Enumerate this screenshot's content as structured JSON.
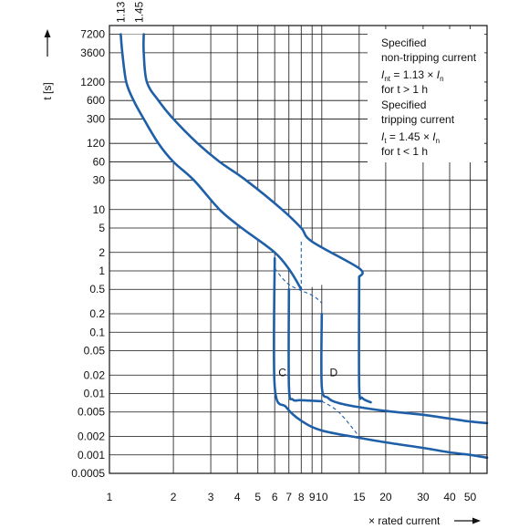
{
  "chart_data": {
    "type": "line",
    "title": "",
    "xlabel": "× rated current",
    "ylabel": "t [s]",
    "xscale": "log",
    "yscale": "log",
    "xlim": [
      1,
      60
    ],
    "ylim": [
      0.0005,
      10000
    ],
    "x_ticks": [
      1,
      2,
      3,
      4,
      5,
      6,
      7,
      8,
      9,
      10,
      15,
      20,
      30,
      40,
      50
    ],
    "x_tick_labels": [
      "1",
      "2",
      "3",
      "4",
      "5",
      "6",
      "7",
      "8",
      "9",
      "10",
      "15",
      "20",
      "30",
      "40",
      "50"
    ],
    "y_ticks": [
      7200,
      3600,
      1200,
      600,
      300,
      120,
      60,
      30,
      10,
      5,
      2,
      1,
      0.5,
      0.2,
      0.1,
      0.05,
      0.02,
      0.01,
      0.005,
      0.002,
      0.001,
      0.0005
    ],
    "y_tick_labels": [
      "7200",
      "3600",
      "1200",
      "600",
      "300",
      "120",
      "60",
      "30",
      "10",
      "5",
      "2",
      "1",
      "0.5",
      "0.2",
      "0.1",
      "0.05",
      "0.02",
      "0.01",
      "0.005",
      "0.002",
      "0.001",
      "0.0005"
    ],
    "grid": true,
    "curve_top_labels": [
      "1.13",
      "1.45"
    ],
    "series": [
      {
        "name": "",
        "values": [
          [
            1.13,
            7200
          ],
          [
            1.15,
            3600
          ],
          [
            1.2,
            1200
          ],
          [
            1.3,
            600
          ],
          [
            1.45,
            300
          ],
          [
            1.7,
            120
          ],
          [
            2,
            60
          ],
          [
            2.5,
            30
          ],
          [
            3.3,
            10
          ],
          [
            4.2,
            5
          ],
          [
            6,
            2
          ],
          [
            7.1,
            1
          ],
          [
            8,
            0.5
          ]
        ]
      },
      {
        "name": "",
        "values": [
          [
            1.45,
            7200
          ],
          [
            1.45,
            3600
          ],
          [
            1.5,
            1200
          ],
          [
            1.7,
            600
          ],
          [
            2,
            300
          ],
          [
            2.6,
            120
          ],
          [
            3.3,
            60
          ],
          [
            4.4,
            30
          ],
          [
            6.5,
            10
          ],
          [
            8,
            5
          ],
          [
            9,
            3
          ],
          [
            15,
            1.1
          ],
          [
            15,
            0.8
          ]
        ]
      },
      {
        "name": "C",
        "values": [
          [
            6,
            1.6
          ],
          [
            6,
            0.013
          ],
          [
            6.8,
            0.006
          ],
          [
            8,
            0.0036
          ],
          [
            10,
            0.0025
          ],
          [
            15,
            0.0019
          ],
          [
            20,
            0.0016
          ],
          [
            30,
            0.0013
          ],
          [
            40,
            0.0011
          ],
          [
            50,
            0.001
          ],
          [
            60,
            0.0009
          ]
        ]
      },
      {
        "name": "",
        "values": [
          [
            7,
            0.5
          ],
          [
            7,
            0.013
          ],
          [
            7.3,
            0.008
          ],
          [
            8,
            0.0078
          ],
          [
            10,
            0.0075
          ]
        ]
      },
      {
        "name": "D",
        "values": [
          [
            10,
            0.2
          ],
          [
            10,
            0.013
          ],
          [
            10.7,
            0.0085
          ],
          [
            12,
            0.007
          ],
          [
            15,
            0.006
          ],
          [
            20,
            0.0052
          ],
          [
            30,
            0.0045
          ],
          [
            40,
            0.0039
          ],
          [
            50,
            0.0035
          ],
          [
            60,
            0.0033
          ]
        ]
      },
      {
        "name": "",
        "values": [
          [
            15,
            0.8
          ],
          [
            15,
            0.013
          ],
          [
            15.5,
            0.0085
          ],
          [
            17,
            0.0072
          ]
        ]
      }
    ],
    "dashed_lines": [
      {
        "values": [
          [
            6,
            1.1
          ],
          [
            7,
            0.6
          ],
          [
            9,
            0.4
          ],
          [
            10,
            0.3
          ]
        ]
      },
      {
        "values": [
          [
            8,
            3
          ],
          [
            8,
            0.5
          ]
        ]
      },
      {
        "values": [
          [
            10,
            0.0075
          ],
          [
            12,
            0.005
          ],
          [
            15,
            0.002
          ]
        ]
      }
    ],
    "annotations": [
      "Specified",
      "non-tripping current",
      "I_nt = 1.13 × I_n",
      "for t > 1 h",
      "Specified",
      "tripping current",
      "I_t = 1.45 × I_n",
      "for t < 1 h"
    ],
    "note": {
      "line1": "Specified",
      "line2": "non-tripping current",
      "line3_sym": "I",
      "line3_sub": "nt",
      "line3_rest": " = 1.13 × ",
      "line3_sym2": "I",
      "line3_sub2": "n",
      "line4": "for t > 1 h",
      "line5": "Specified",
      "line6": "tripping current",
      "line7_sym": "I",
      "line7_sub": "t",
      "line7_rest": " = 1.45 × ",
      "line7_sym2": "I",
      "line7_sub2": "n",
      "line8": "for t < 1 h"
    },
    "colors": {
      "curve": "#1f5fa8",
      "grid": "#111111"
    }
  }
}
